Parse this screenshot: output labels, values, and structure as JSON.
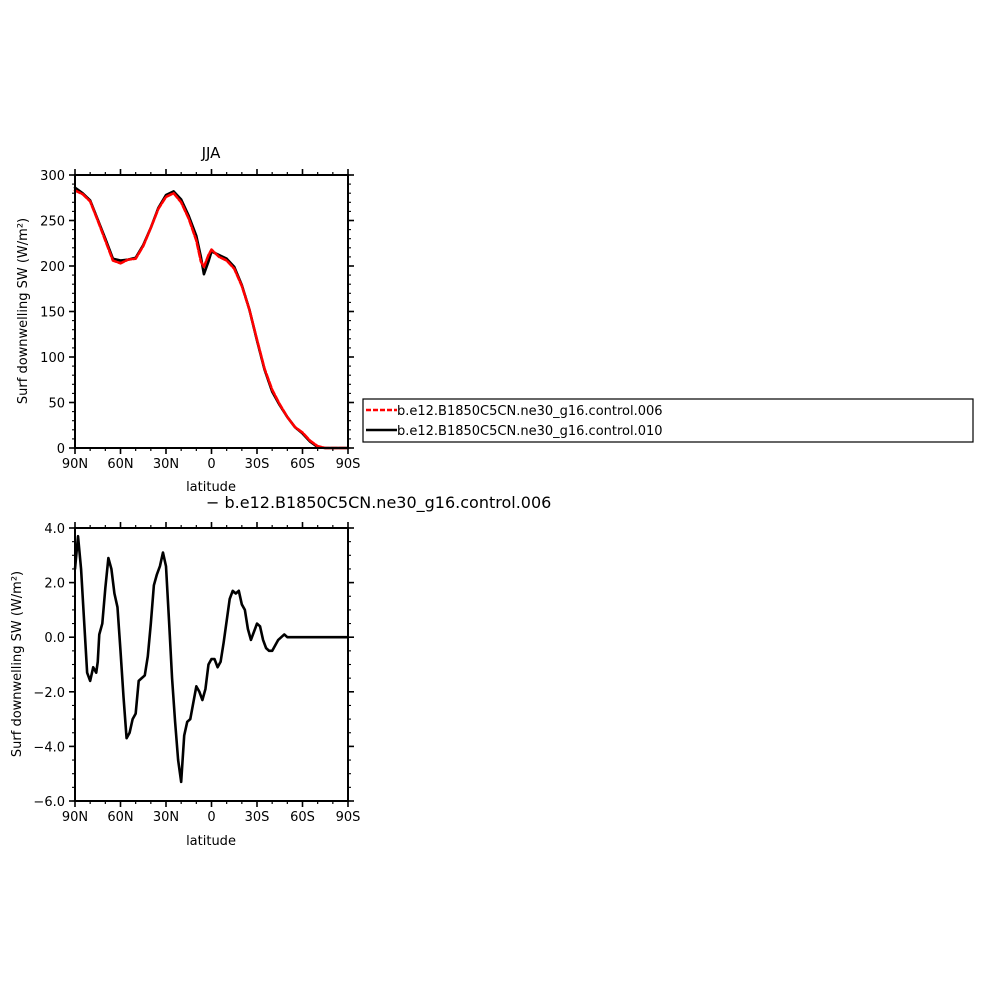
{
  "chart_data": [
    {
      "type": "line",
      "title": "JJA",
      "xlabel": "latitude",
      "ylabel": "Surf downwelling SW (W/m²)",
      "xlim": [
        90,
        -90
      ],
      "ylim": [
        0,
        300
      ],
      "x_tick_values": [
        90,
        60,
        30,
        0,
        -30,
        -60,
        -90
      ],
      "x_tick_labels": [
        "90N",
        "60N",
        "30N",
        "0",
        "30S",
        "60S",
        "90S"
      ],
      "y_tick_values": [
        0,
        50,
        100,
        150,
        200,
        250,
        300
      ],
      "y_tick_labels": [
        "0",
        "50",
        "100",
        "150",
        "200",
        "250",
        "300"
      ],
      "legend_position": "right",
      "x": [
        90,
        85,
        80,
        75,
        70,
        65,
        60,
        55,
        50,
        45,
        40,
        35,
        30,
        25,
        20,
        15,
        10,
        7,
        5,
        2,
        0,
        -5,
        -10,
        -15,
        -20,
        -25,
        -30,
        -35,
        -40,
        -45,
        -50,
        -55,
        -60,
        -65,
        -70,
        -75,
        -80,
        -85,
        -90
      ],
      "series": [
        {
          "name": "b.e12.B1850C5CN.ne30_g16.control.006",
          "color": "#ff0000",
          "dash": true,
          "values": [
            283,
            279,
            271,
            250,
            228,
            206,
            203,
            207,
            208,
            222,
            242,
            263,
            276,
            280,
            270,
            252,
            228,
            205,
            199,
            212,
            218,
            210,
            206,
            197,
            178,
            152,
            119,
            87,
            64,
            48,
            34,
            23,
            17,
            8,
            2,
            0,
            0,
            0,
            0
          ]
        },
        {
          "name": "b.e12.B1850C5CN.ne30_g16.control.010",
          "color": "#000000",
          "dash": false,
          "values": [
            286,
            280,
            272,
            251,
            230,
            208,
            206,
            207,
            209,
            223,
            242,
            264,
            278,
            282,
            273,
            255,
            233,
            210,
            191,
            205,
            216,
            212,
            208,
            199,
            179,
            152,
            118,
            86,
            62,
            47,
            34,
            23,
            16,
            7,
            1,
            0,
            0,
            0,
            0
          ]
        }
      ]
    },
    {
      "type": "line",
      "title": "",
      "label": "− b.e12.B1850C5CN.ne30_g16.control.006",
      "xlabel": "latitude",
      "ylabel": "Surf downwelling SW (W/m²)",
      "xlim": [
        90,
        -90
      ],
      "ylim": [
        -6.0,
        4.0
      ],
      "x_tick_values": [
        90,
        60,
        30,
        0,
        -30,
        -60,
        -90
      ],
      "x_tick_labels": [
        "90N",
        "60N",
        "30N",
        "0",
        "30S",
        "60S",
        "90S"
      ],
      "y_tick_values": [
        -6,
        -4,
        -2,
        0,
        2,
        4
      ],
      "y_tick_labels": [
        "−6.0",
        "−4.0",
        "−2.0",
        "0.0",
        "2.0",
        "4.0"
      ],
      "x": [
        90,
        88,
        86,
        84,
        82,
        80,
        78,
        76,
        75,
        74,
        72,
        70,
        68,
        66,
        64,
        62,
        60,
        58,
        56,
        54,
        52,
        50,
        48,
        46,
        44,
        42,
        40,
        38,
        36,
        34,
        32,
        30,
        28,
        26,
        24,
        22,
        20,
        18,
        16,
        14,
        12,
        10,
        8,
        6,
        4,
        2,
        0,
        -2,
        -4,
        -6,
        -8,
        -10,
        -12,
        -14,
        -16,
        -18,
        -20,
        -22,
        -24,
        -26,
        -28,
        -30,
        -32,
        -34,
        -36,
        -38,
        -40,
        -42,
        -44,
        -46,
        -48,
        -50,
        -52,
        -54,
        -56,
        -58,
        -60,
        -62,
        -64,
        -66,
        -68,
        -70,
        -74,
        -80,
        -85,
        -90
      ],
      "series": [
        {
          "name": "",
          "color": "#000000",
          "dash": false,
          "values": [
            2.5,
            3.7,
            2.5,
            0.6,
            -1.3,
            -1.6,
            -1.1,
            -1.3,
            -0.9,
            0.1,
            0.5,
            1.8,
            2.9,
            2.5,
            1.6,
            1.1,
            -0.5,
            -2.2,
            -3.7,
            -3.5,
            -3.0,
            -2.8,
            -1.6,
            -1.5,
            -1.4,
            -0.7,
            0.5,
            1.9,
            2.3,
            2.6,
            3.1,
            2.6,
            0.6,
            -1.5,
            -3.1,
            -4.5,
            -5.3,
            -3.6,
            -3.1,
            -3.0,
            -2.4,
            -1.8,
            -2.0,
            -2.3,
            -1.9,
            -1.0,
            -0.8,
            -0.8,
            -1.1,
            -0.9,
            -0.2,
            0.6,
            1.4,
            1.7,
            1.6,
            1.7,
            1.2,
            1.0,
            0.3,
            -0.1,
            0.2,
            0.5,
            0.4,
            -0.1,
            -0.4,
            -0.5,
            -0.5,
            -0.3,
            -0.1,
            0.0,
            0.1,
            0.0,
            0.0,
            0.0,
            0.0,
            0.0,
            0.0,
            0.0,
            0.0,
            0.0,
            0.0,
            0.0,
            0.0,
            0.0,
            0.0,
            0.0
          ]
        }
      ]
    }
  ]
}
